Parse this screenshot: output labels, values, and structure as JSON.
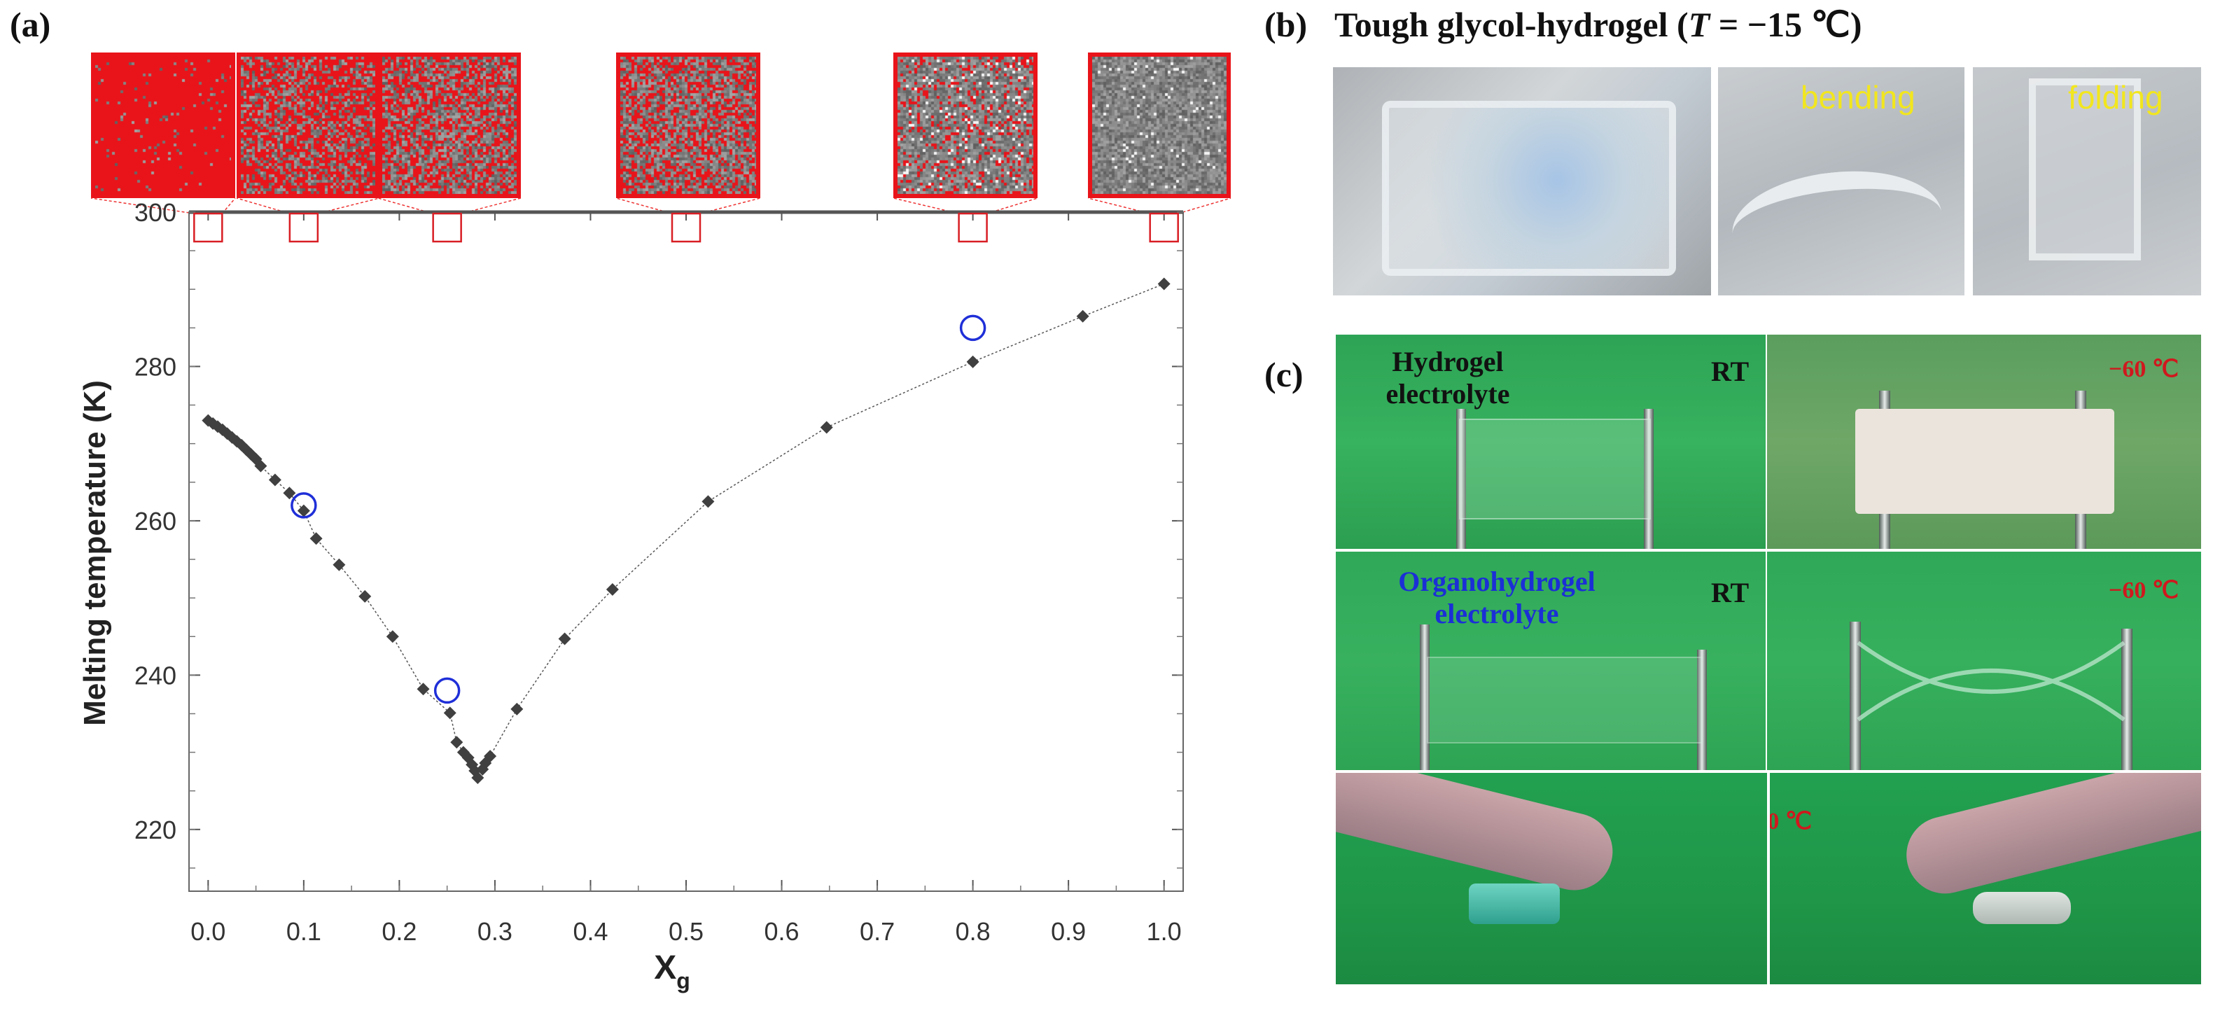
{
  "panel_labels": {
    "a": "(a)",
    "b": "(b)",
    "c": "(c)"
  },
  "panel_b": {
    "title_prefix": "Tough glycol-hydrogel (",
    "title_var": "T",
    "title_suffix": " = −15 ℃)",
    "photos": [
      {
        "caption": ""
      },
      {
        "caption": "bending"
      },
      {
        "caption": "folding"
      }
    ]
  },
  "panel_c": {
    "hydrogel_label": "Hydrogel\nelectrolyte",
    "organohydrogel_label": "Organohydrogel\nelectrolyte",
    "rt_label": "RT",
    "cold_label": "−60 ℃",
    "colors": {
      "hydrogel_text": "#111111",
      "organo_text": "#1b2fd6",
      "cold_text": "#d0181e",
      "background": "#2fae5c"
    }
  },
  "chart_data": {
    "type": "scatter",
    "xlabel": "X",
    "xlabel_sub": "g",
    "ylabel": "Melting temperature (K)",
    "xlim": [
      -0.02,
      1.02
    ],
    "ylim": [
      212,
      300
    ],
    "xticks": [
      "0.0",
      "0.1",
      "0.2",
      "0.3",
      "0.4",
      "0.5",
      "0.6",
      "0.7",
      "0.8",
      "0.9",
      "1.0"
    ],
    "yticks": [
      "220",
      "240",
      "260",
      "280",
      "300"
    ],
    "series": [
      {
        "marker": "filled-diamond",
        "color": "#404040",
        "points": [
          [
            0.0,
            273.0
          ],
          [
            0.005,
            272.6
          ],
          [
            0.01,
            272.2
          ],
          [
            0.015,
            271.8
          ],
          [
            0.02,
            271.3
          ],
          [
            0.025,
            270.8
          ],
          [
            0.03,
            270.3
          ],
          [
            0.035,
            269.8
          ],
          [
            0.04,
            269.2
          ],
          [
            0.045,
            268.6
          ],
          [
            0.05,
            268.0
          ],
          [
            0.055,
            267.1
          ],
          [
            0.07,
            265.3
          ],
          [
            0.085,
            263.6
          ],
          [
            0.1,
            261.3
          ],
          [
            0.113,
            257.7
          ],
          [
            0.137,
            254.3
          ],
          [
            0.164,
            250.2
          ],
          [
            0.193,
            245.0
          ],
          [
            0.225,
            238.2
          ],
          [
            0.253,
            235.1
          ],
          [
            0.26,
            231.3
          ],
          [
            0.267,
            230.0
          ],
          [
            0.272,
            229.3
          ],
          [
            0.276,
            228.4
          ],
          [
            0.279,
            227.6
          ],
          [
            0.282,
            226.7
          ],
          [
            0.287,
            227.8
          ],
          [
            0.29,
            228.6
          ],
          [
            0.295,
            229.5
          ],
          [
            0.323,
            235.6
          ],
          [
            0.373,
            244.7
          ],
          [
            0.423,
            251.1
          ],
          [
            0.523,
            262.5
          ],
          [
            0.647,
            272.1
          ],
          [
            0.8,
            280.6
          ],
          [
            0.915,
            286.5
          ],
          [
            1.0,
            290.7
          ]
        ]
      },
      {
        "marker": "open-circle",
        "color": "#1f2fd8",
        "points": [
          [
            0.1,
            262.0
          ],
          [
            0.25,
            238.0
          ],
          [
            0.8,
            285.0
          ]
        ]
      }
    ],
    "highlight_boxes_x": [
      0.0,
      0.1,
      0.25,
      0.5,
      0.8,
      1.0
    ],
    "highlight_boxes_y": 298
  },
  "snapshots": [
    {
      "grey_fraction": 0.04
    },
    {
      "grey_fraction": 0.45
    },
    {
      "grey_fraction": 0.58
    },
    {
      "grey_fraction": 0.62
    },
    {
      "grey_fraction": 0.78
    },
    {
      "grey_fraction": 0.96
    }
  ]
}
